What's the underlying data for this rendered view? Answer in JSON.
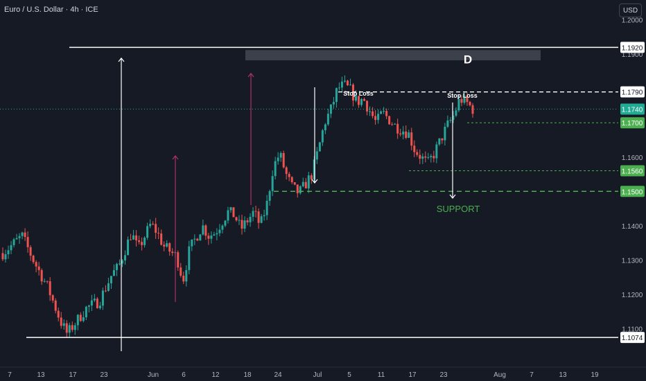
{
  "header": {
    "symbol_title": "Euro / U.S. Dollar · 4h · ICE",
    "currency_button": "USD"
  },
  "colors": {
    "background": "#161a25",
    "bull": "#26a69a",
    "bear": "#ef5350",
    "text": "#b2b5be",
    "support_green": "#4caf50",
    "current_price_teal": "#22ab94",
    "level_white": "#ffffff",
    "arrow_pink": "#b0306a",
    "zone_grey": "#4a4d58"
  },
  "chart_data": {
    "type": "candlestick",
    "title": "Euro / U.S. Dollar · 4h · ICE",
    "ylim": [
      1.104,
      1.2058
    ],
    "y_ticks": [
      "1.2000",
      "1.1900",
      "1.1800",
      "1.1700",
      "1.1600",
      "1.1500",
      "1.1400",
      "1.1300",
      "1.1200",
      "1.1100"
    ],
    "x_ticks": [
      "7",
      "13",
      "17",
      "23",
      "Jun",
      "6",
      "12",
      "18",
      "24",
      "Jul",
      "5",
      "11",
      "17",
      "23",
      "Aug",
      "7",
      "13",
      "19"
    ],
    "price_path": [
      [
        0,
        1.132
      ],
      [
        3,
        1.137
      ],
      [
        5,
        1.129
      ],
      [
        7,
        1.122
      ],
      [
        9,
        1.112
      ],
      [
        10,
        1.1085
      ],
      [
        11,
        1.111
      ],
      [
        13,
        1.116
      ],
      [
        15,
        1.118
      ],
      [
        17,
        1.126
      ],
      [
        18,
        1.128
      ],
      [
        20,
        1.138
      ],
      [
        21,
        1.133
      ],
      [
        23,
        1.1405
      ],
      [
        24,
        1.138
      ],
      [
        25,
        1.134
      ],
      [
        27,
        1.131
      ],
      [
        28,
        1.124
      ],
      [
        29,
        1.133
      ],
      [
        31,
        1.14
      ],
      [
        32,
        1.137
      ],
      [
        33,
        1.138
      ],
      [
        35,
        1.144
      ],
      [
        36,
        1.143
      ],
      [
        37,
        1.139
      ],
      [
        39,
        1.144
      ],
      [
        40,
        1.14
      ],
      [
        41,
        1.146
      ],
      [
        42,
        1.157
      ],
      [
        43,
        1.161
      ],
      [
        44,
        1.155
      ],
      [
        45,
        1.151
      ],
      [
        46,
        1.1495
      ],
      [
        47,
        1.152
      ],
      [
        48,
        1.155
      ],
      [
        49,
        1.162
      ],
      [
        50,
        1.17
      ],
      [
        51,
        1.174
      ],
      [
        52,
        1.18
      ],
      [
        53,
        1.181
      ],
      [
        54,
        1.1795
      ],
      [
        55,
        1.176
      ],
      [
        56,
        1.177
      ],
      [
        57,
        1.1735
      ],
      [
        58,
        1.17
      ],
      [
        59,
        1.173
      ],
      [
        60,
        1.171
      ],
      [
        61,
        1.169
      ],
      [
        62,
        1.168
      ],
      [
        63,
        1.167
      ],
      [
        64,
        1.162
      ],
      [
        65,
        1.16
      ],
      [
        66,
        1.158
      ],
      [
        67,
        1.161
      ],
      [
        68,
        1.165
      ],
      [
        69,
        1.169
      ],
      [
        70,
        1.172
      ],
      [
        71,
        1.177
      ],
      [
        72,
        1.176
      ],
      [
        73,
        1.174
      ]
    ],
    "levels": [
      {
        "price": 1.192,
        "label": "1.1920",
        "style": "white-solid"
      },
      {
        "price": 1.179,
        "label": "1.1790",
        "style": "white-dashed"
      },
      {
        "price": 1.174,
        "label": "1.1740",
        "style": "current-price"
      },
      {
        "price": 1.17,
        "label": "1.1700",
        "style": "green-dotted"
      },
      {
        "price": 1.156,
        "label": "1.1560",
        "style": "green-dotted"
      },
      {
        "price": 1.15,
        "label": "1.1500",
        "style": "green-dashed"
      },
      {
        "price": 1.1074,
        "label": "1.1074",
        "style": "white-solid"
      }
    ],
    "zone": {
      "label": "D",
      "from_price": 1.1882,
      "to_price": 1.1912
    },
    "annotations": [
      {
        "text": "Stop Loss",
        "kind": "stop-loss-1"
      },
      {
        "text": "Stop Loss",
        "kind": "stop-loss-2"
      },
      {
        "text": "SUPPORT",
        "kind": "support"
      }
    ],
    "grid": false
  }
}
